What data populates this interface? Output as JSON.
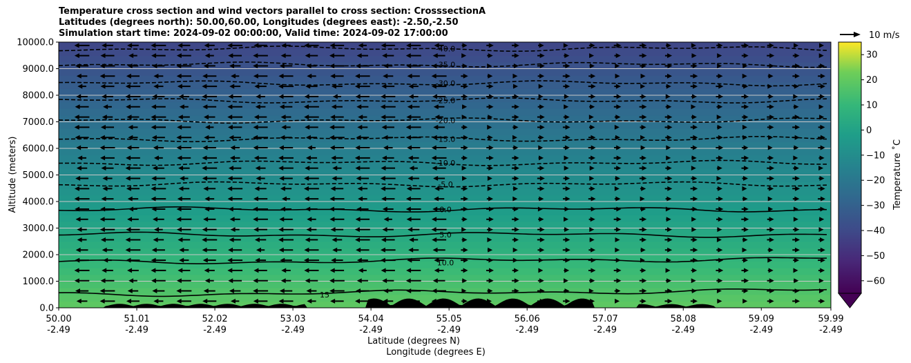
{
  "chart_data": {
    "type": "contourf",
    "title": [
      "Temperature cross section and wind vectors parallel to cross section: CrosssectionA",
      "Latitudes (degrees north): 50.00,60.00, Longitudes (degrees east): -2.50,-2.50",
      "Simulation start time: 2024-09-02 00:00:00, Valid time: 2024-09-02 17:00:00"
    ],
    "ylabel": "Altitude (meters)",
    "xlabel_lat": "Latitude (degrees N)",
    "xlabel_lon": "Longitude (degrees E)",
    "ylim": [
      0,
      10000
    ],
    "xlim": [
      50.0,
      59.99
    ],
    "yticks": [
      "0.0",
      "1000.0",
      "2000.0",
      "3000.0",
      "4000.0",
      "5000.0",
      "6000.0",
      "7000.0",
      "8000.0",
      "9000.0",
      "10000.0"
    ],
    "ytick_values": [
      0,
      1000,
      2000,
      3000,
      4000,
      5000,
      6000,
      7000,
      8000,
      9000,
      10000
    ],
    "xticks_lat": [
      "50.00",
      "51.01",
      "52.02",
      "53.03",
      "54.04",
      "55.05",
      "56.06",
      "57.07",
      "58.08",
      "59.09",
      "59.99"
    ],
    "xticks_lon": [
      "-2.49",
      "-2.49",
      "-2.49",
      "-2.49",
      "-2.49",
      "-2.49",
      "-2.49",
      "-2.49",
      "-2.49",
      "-2.49",
      "-2.49"
    ],
    "xtick_values": [
      50.0,
      51.01,
      52.02,
      53.03,
      54.04,
      55.05,
      56.06,
      57.07,
      58.08,
      59.09,
      59.99
    ],
    "grid": "horizontal",
    "contour_lines": [
      {
        "label": "-40.0",
        "altitude": 9750,
        "dashed": true
      },
      {
        "label": "-35.0",
        "altitude": 9150,
        "dashed": true
      },
      {
        "label": "-30.0",
        "altitude": 8450,
        "dashed": true
      },
      {
        "label": "-25.0",
        "altitude": 7800,
        "dashed": true
      },
      {
        "label": "-20.0",
        "altitude": 7050,
        "dashed": true
      },
      {
        "label": "-15.0",
        "altitude": 6350,
        "dashed": true
      },
      {
        "label": "-10.0",
        "altitude": 5450,
        "dashed": true
      },
      {
        "label": "-5.0",
        "altitude": 4650,
        "dashed": true
      },
      {
        "label": "0.0",
        "altitude": 3700,
        "dashed": false
      },
      {
        "label": "5.0",
        "altitude": 2750,
        "dashed": false
      },
      {
        "label": "10.0",
        "altitude": 1700,
        "dashed": false
      },
      {
        "label": "15",
        "altitude": 500,
        "dashed": false
      }
    ],
    "wind_key_label": "10 m/s",
    "colorbar": {
      "label": "Temperature $^\\circ$C",
      "label_text": "Temperature ˚C",
      "ticks": [
        "30",
        "20",
        "10",
        "0",
        "−10",
        "−20",
        "−30",
        "−40",
        "−50",
        "−60"
      ],
      "tick_values": [
        30,
        20,
        10,
        0,
        -10,
        -20,
        -30,
        -40,
        -50,
        -60
      ],
      "range": [
        -65,
        35
      ],
      "extend": "min",
      "colormap": "viridis"
    }
  }
}
